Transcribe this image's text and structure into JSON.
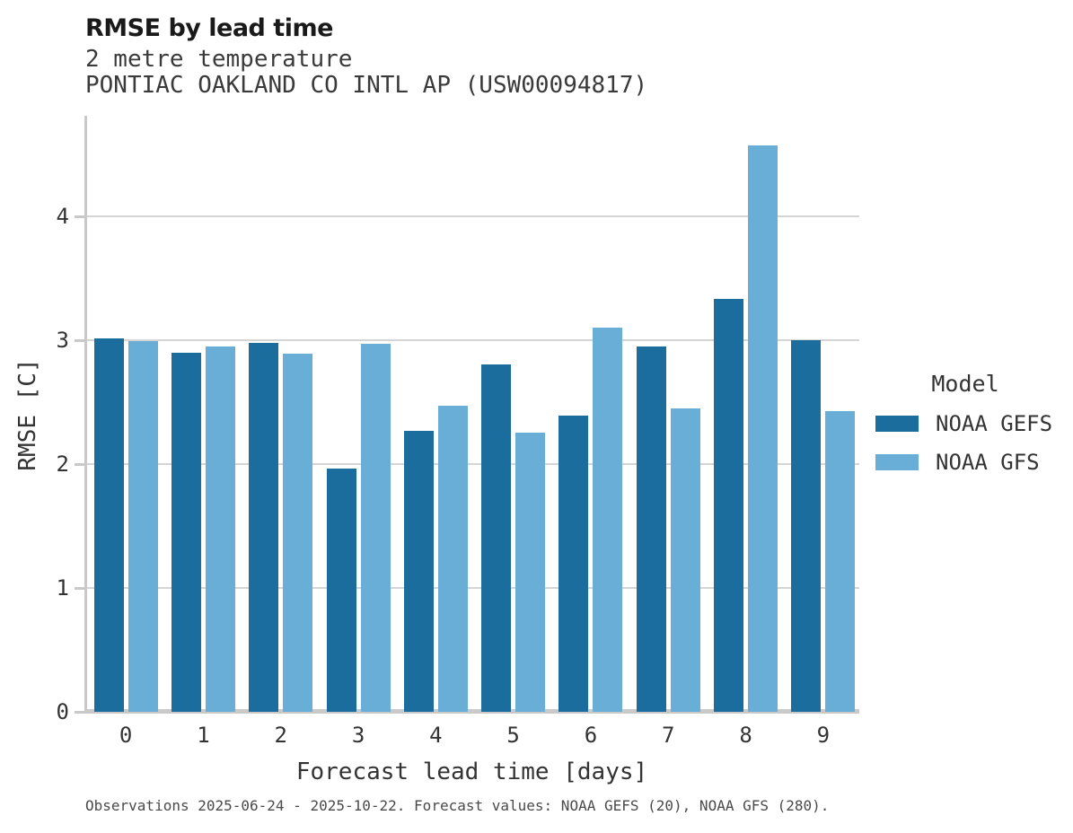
{
  "header": {
    "title": "RMSE by lead time",
    "subtitle1": "2 metre temperature",
    "subtitle2": "PONTIAC OAKLAND CO INTL AP (USW00094817)"
  },
  "footer": {
    "caption": "Observations 2025-06-24 - 2025-10-22. Forecast values: NOAA GEFS (20), NOAA GFS (280)."
  },
  "legend": {
    "title": "Model",
    "entries": [
      {
        "label": "NOAA GEFS",
        "color": "#1b6d9d"
      },
      {
        "label": "NOAA GFS",
        "color": "#69aed7"
      }
    ]
  },
  "chart_data": {
    "type": "bar",
    "categories": [
      "0",
      "1",
      "2",
      "3",
      "4",
      "5",
      "6",
      "7",
      "8",
      "9"
    ],
    "series": [
      {
        "name": "NOAA GEFS",
        "color": "#1b6d9d",
        "values": [
          3.01,
          2.9,
          2.98,
          1.96,
          2.27,
          2.8,
          2.39,
          2.95,
          3.33,
          3.0
        ]
      },
      {
        "name": "NOAA GFS",
        "color": "#69aed7",
        "values": [
          2.99,
          2.95,
          2.89,
          2.97,
          2.47,
          2.25,
          3.1,
          2.45,
          4.57,
          2.43
        ]
      }
    ],
    "title": "RMSE by lead time",
    "subtitle": "2 metre temperature — PONTIAC OAKLAND CO INTL AP (USW00094817)",
    "xlabel": "Forecast lead time [days]",
    "ylabel": "RMSE [C]",
    "ylim": [
      0,
      4.81
    ],
    "yticks": [
      0,
      1,
      2,
      3,
      4
    ],
    "grid": true,
    "legend_position": "right"
  },
  "colors": {
    "grid": "#d5d5d5",
    "axis": "#c9c9c9",
    "text": "#333333"
  }
}
